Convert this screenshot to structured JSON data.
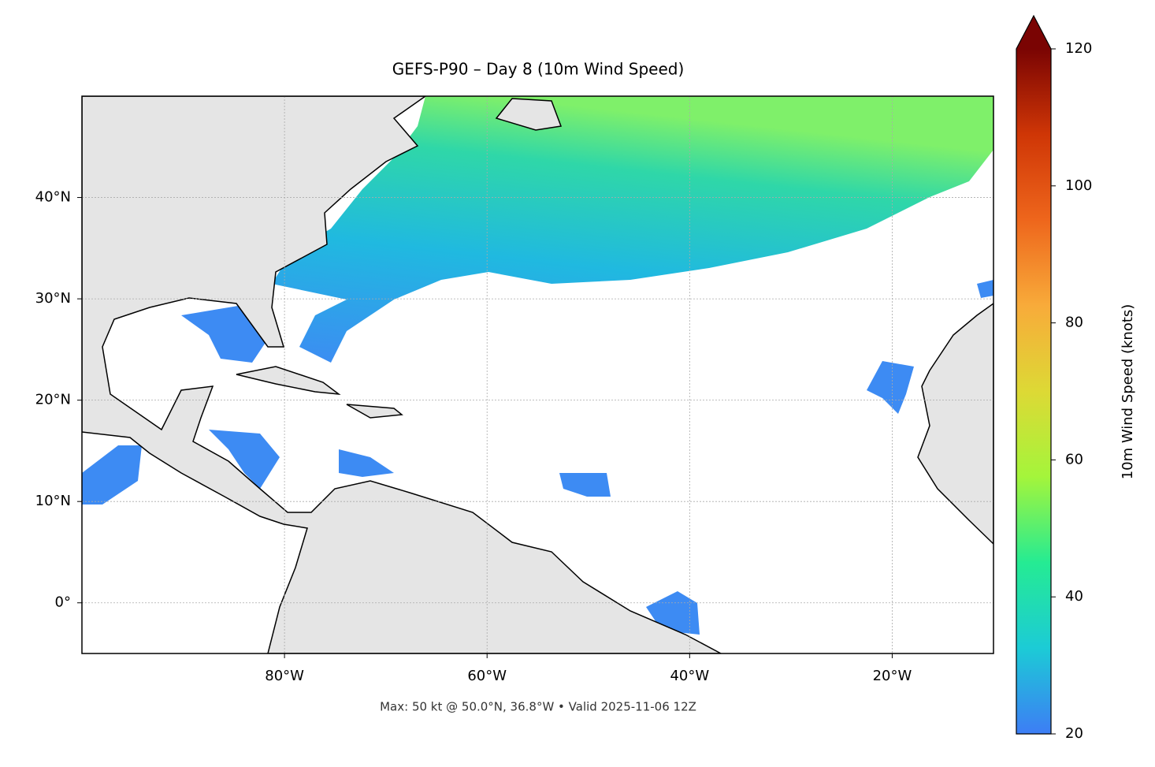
{
  "chart_data": {
    "type": "map",
    "title": "GEFS-P90 – Day 8 (10m Wind Speed)",
    "xlim": [
      -100,
      -10
    ],
    "ylim": [
      -5,
      50
    ],
    "xticks": [
      {
        "value": -80,
        "label": "80°W"
      },
      {
        "value": -60,
        "label": "60°W"
      },
      {
        "value": -40,
        "label": "40°W"
      },
      {
        "value": -20,
        "label": "20°W"
      }
    ],
    "yticks": [
      {
        "value": 0,
        "label": "0°"
      },
      {
        "value": 10,
        "label": "10°N"
      },
      {
        "value": 20,
        "label": "20°N"
      },
      {
        "value": 30,
        "label": "30°N"
      },
      {
        "value": 40,
        "label": "40°N"
      }
    ],
    "grid": true,
    "colorbar": {
      "label": "10m Wind Speed (knots)",
      "lim": [
        20,
        120
      ],
      "ticks": [
        20,
        40,
        60,
        80,
        100,
        120
      ],
      "colors": [
        "#3d7df5",
        "#1ccbd6",
        "#25eb93",
        "#a4f53b",
        "#ddd935",
        "#f8ab3a",
        "#ee661c",
        "#cf3606",
        "#7a0403"
      ]
    },
    "footer": "Max: 50 kt @ 50.0°N, 36.8°W • Valid 2025-11-06 12Z"
  }
}
